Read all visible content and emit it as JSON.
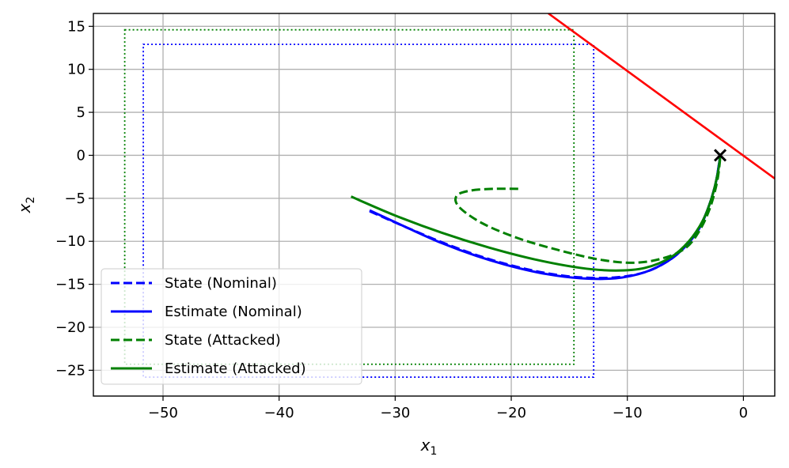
{
  "chart_data": {
    "type": "line",
    "title": "",
    "xlabel": "x",
    "xlabel_sub": "1",
    "ylabel": "x",
    "ylabel_sub": "2",
    "xlim": [
      -56,
      2.7
    ],
    "ylim": [
      -28,
      16.5
    ],
    "xticks": [
      -50,
      -40,
      -30,
      -20,
      -10,
      0
    ],
    "yticks": [
      -25,
      -20,
      -15,
      -10,
      -5,
      0,
      5,
      10,
      15
    ],
    "xtick_labels": [
      "−50",
      "−40",
      "−30",
      "−20",
      "−10",
      "0"
    ],
    "ytick_labels": [
      "−25",
      "−20",
      "−15",
      "−10",
      "−5",
      "0",
      "5",
      "10",
      "15"
    ],
    "grid": true,
    "legend_position": "lower-left",
    "colors": {
      "nominal": "#0000ff",
      "attacked": "#008000",
      "boundary": "#ff0000",
      "target": "#000000"
    },
    "series": [
      {
        "name": "State (Nominal)",
        "style": "dashed",
        "color": "#0000ff",
        "points": [
          [
            -32.2,
            -6.5
          ],
          [
            -29,
            -8.4
          ],
          [
            -26,
            -10.1
          ],
          [
            -23,
            -11.6
          ],
          [
            -20,
            -12.8
          ],
          [
            -17,
            -13.7
          ],
          [
            -14,
            -14.2
          ],
          [
            -11,
            -14.2
          ],
          [
            -8.5,
            -13.6
          ],
          [
            -6.5,
            -12.3
          ],
          [
            -5,
            -10.6
          ],
          [
            -3.8,
            -8.5
          ],
          [
            -3,
            -6
          ],
          [
            -2.4,
            -3.3
          ],
          [
            -2.1,
            -1
          ],
          [
            -2,
            0
          ]
        ]
      },
      {
        "name": "Estimate (Nominal)",
        "style": "solid",
        "color": "#0000ff",
        "points": [
          [
            -32.2,
            -6.4
          ],
          [
            -29,
            -8.4
          ],
          [
            -26,
            -10.2
          ],
          [
            -23,
            -11.7
          ],
          [
            -20,
            -12.9
          ],
          [
            -17,
            -13.8
          ],
          [
            -14,
            -14.3
          ],
          [
            -11,
            -14.3
          ],
          [
            -8.5,
            -13.6
          ],
          [
            -6.5,
            -12.3
          ],
          [
            -5,
            -10.6
          ],
          [
            -3.8,
            -8.4
          ],
          [
            -3,
            -6
          ],
          [
            -2.4,
            -3.3
          ],
          [
            -2.1,
            -1
          ],
          [
            -2,
            0
          ]
        ]
      },
      {
        "name": "State (Attacked)",
        "style": "dashed",
        "color": "#008000",
        "points": [
          [
            -19.4,
            -3.9
          ],
          [
            -21.5,
            -3.9
          ],
          [
            -23.5,
            -4.1
          ],
          [
            -24.7,
            -4.7
          ],
          [
            -24.5,
            -6
          ],
          [
            -22.5,
            -7.9
          ],
          [
            -19.5,
            -9.6
          ],
          [
            -16,
            -11
          ],
          [
            -12.5,
            -12.1
          ],
          [
            -9.5,
            -12.5
          ],
          [
            -7,
            -12
          ],
          [
            -5,
            -10.8
          ],
          [
            -3.8,
            -8.8
          ],
          [
            -2.9,
            -6.2
          ],
          [
            -2.3,
            -3.3
          ],
          [
            -2.05,
            -1
          ],
          [
            -2,
            0
          ]
        ]
      },
      {
        "name": "Estimate (Attacked)",
        "style": "solid",
        "color": "#008000",
        "points": [
          [
            -33.8,
            -4.8
          ],
          [
            -30,
            -7
          ],
          [
            -26,
            -9
          ],
          [
            -22,
            -10.7
          ],
          [
            -18,
            -12.1
          ],
          [
            -14,
            -13.1
          ],
          [
            -11,
            -13.4
          ],
          [
            -8.5,
            -13.1
          ],
          [
            -6.3,
            -11.9
          ],
          [
            -4.7,
            -10
          ],
          [
            -3.5,
            -7.6
          ],
          [
            -2.7,
            -4.8
          ],
          [
            -2.2,
            -2
          ],
          [
            -2,
            0
          ]
        ]
      }
    ],
    "boxes": [
      {
        "color": "#0000ff",
        "style": "dotted",
        "x": [
          -51.7,
          -12.9
        ],
        "y": [
          -25.8,
          12.9
        ]
      },
      {
        "color": "#008000",
        "style": "dotted",
        "x": [
          -53.3,
          -14.6
        ],
        "y": [
          -24.3,
          14.6
        ]
      }
    ],
    "boundary_line": {
      "color": "#ff0000",
      "style": "solid",
      "points": [
        [
          -16.8,
          16.5
        ],
        [
          2.7,
          -2.7
        ]
      ]
    },
    "target_marker": {
      "symbol": "×",
      "x": -2,
      "y": 0
    }
  }
}
